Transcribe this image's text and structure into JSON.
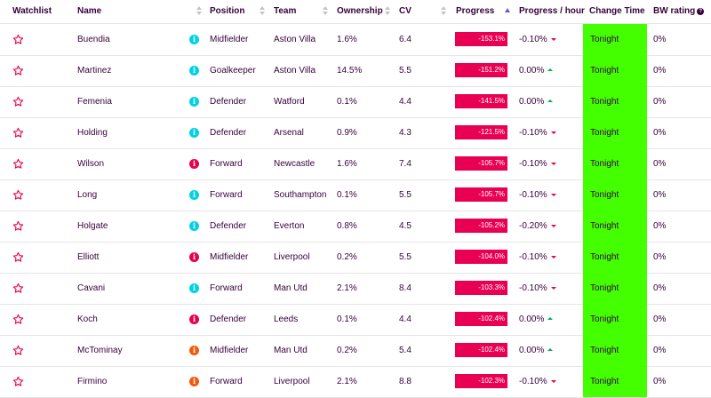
{
  "colors": {
    "accent": "#37003c",
    "progress_bar": "#e90052",
    "change_time_bg": "#44ff00",
    "star": "#e90052",
    "info_cyan": "#00d2e6",
    "info_red": "#e90052",
    "info_orange": "#f25a0c",
    "trend_down": "#e90052",
    "trend_up": "#00b050"
  },
  "header": {
    "watchlist": "Watchlist",
    "name": "Name",
    "position": "Position",
    "team": "Team",
    "ownership": "Ownership",
    "cv": "CV",
    "progress": "Progress",
    "progress_hour": "Progress / hour",
    "change_time": "Change Time",
    "bw_rating": "BW rating"
  },
  "rows": [
    {
      "name": "Buendia",
      "status": "cyan",
      "position": "Midfielder",
      "team": "Aston Villa",
      "ownership": "1.6%",
      "cv": "6.4",
      "progress": "-153.1%",
      "progress_hour": "-0.10%",
      "trend": "down",
      "change_time": "Tonight",
      "bw_rating": "0%"
    },
    {
      "name": "Martinez",
      "status": "cyan",
      "position": "Goalkeeper",
      "team": "Aston Villa",
      "ownership": "14.5%",
      "cv": "5.5",
      "progress": "-151.2%",
      "progress_hour": "0.00%",
      "trend": "up",
      "change_time": "Tonight",
      "bw_rating": "0%"
    },
    {
      "name": "Femenia",
      "status": "cyan",
      "position": "Defender",
      "team": "Watford",
      "ownership": "0.1%",
      "cv": "4.4",
      "progress": "-141.5%",
      "progress_hour": "0.00%",
      "trend": "up",
      "change_time": "Tonight",
      "bw_rating": "0%"
    },
    {
      "name": "Holding",
      "status": "cyan",
      "position": "Defender",
      "team": "Arsenal",
      "ownership": "0.9%",
      "cv": "4.3",
      "progress": "-121.5%",
      "progress_hour": "-0.10%",
      "trend": "down",
      "change_time": "Tonight",
      "bw_rating": "0%"
    },
    {
      "name": "Wilson",
      "status": "red",
      "position": "Forward",
      "team": "Newcastle",
      "ownership": "1.6%",
      "cv": "7.4",
      "progress": "-105.7%",
      "progress_hour": "-0.10%",
      "trend": "down",
      "change_time": "Tonight",
      "bw_rating": "0%"
    },
    {
      "name": "Long",
      "status": "cyan",
      "position": "Forward",
      "team": "Southampton",
      "ownership": "0.1%",
      "cv": "5.5",
      "progress": "-105.7%",
      "progress_hour": "-0.10%",
      "trend": "down",
      "change_time": "Tonight",
      "bw_rating": "0%"
    },
    {
      "name": "Holgate",
      "status": "cyan",
      "position": "Defender",
      "team": "Everton",
      "ownership": "0.8%",
      "cv": "4.5",
      "progress": "-105.2%",
      "progress_hour": "-0.20%",
      "trend": "down",
      "change_time": "Tonight",
      "bw_rating": "0%"
    },
    {
      "name": "Elliott",
      "status": "red",
      "position": "Midfielder",
      "team": "Liverpool",
      "ownership": "0.2%",
      "cv": "5.5",
      "progress": "-104.0%",
      "progress_hour": "-0.10%",
      "trend": "down",
      "change_time": "Tonight",
      "bw_rating": "0%"
    },
    {
      "name": "Cavani",
      "status": "cyan",
      "position": "Forward",
      "team": "Man Utd",
      "ownership": "2.1%",
      "cv": "8.4",
      "progress": "-103.3%",
      "progress_hour": "-0.10%",
      "trend": "down",
      "change_time": "Tonight",
      "bw_rating": "0%"
    },
    {
      "name": "Koch",
      "status": "red",
      "position": "Defender",
      "team": "Leeds",
      "ownership": "0.1%",
      "cv": "4.4",
      "progress": "-102.4%",
      "progress_hour": "0.00%",
      "trend": "up",
      "change_time": "Tonight",
      "bw_rating": "0%"
    },
    {
      "name": "McTominay",
      "status": "orange",
      "position": "Midfielder",
      "team": "Man Utd",
      "ownership": "0.2%",
      "cv": "5.4",
      "progress": "-102.4%",
      "progress_hour": "0.00%",
      "trend": "up",
      "change_time": "Tonight",
      "bw_rating": "0%"
    },
    {
      "name": "Firmino",
      "status": "orange",
      "position": "Forward",
      "team": "Liverpool",
      "ownership": "2.1%",
      "cv": "8.8",
      "progress": "-102.3%",
      "progress_hour": "-0.10%",
      "trend": "down",
      "change_time": "Tonight",
      "bw_rating": "0%"
    }
  ]
}
